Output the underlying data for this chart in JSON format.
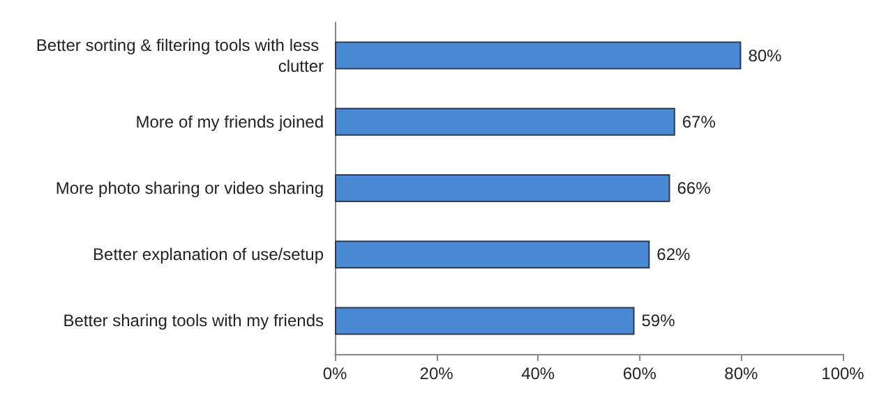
{
  "chart_data": {
    "type": "bar",
    "orientation": "horizontal",
    "categories": [
      "Better sorting & filtering tools with less clutter",
      "More of my friends joined",
      "More photo sharing or video sharing",
      "Better explanation of use/setup",
      "Better sharing tools with my friends"
    ],
    "values": [
      80,
      67,
      66,
      62,
      59
    ],
    "value_labels": [
      "80%",
      "67%",
      "66%",
      "62%",
      "59%"
    ],
    "color": "#4a8ad4",
    "xlim": [
      0,
      100
    ],
    "xticks": [
      {
        "value": 0,
        "label": "0%"
      },
      {
        "value": 20,
        "label": "20%"
      },
      {
        "value": 40,
        "label": "40%"
      },
      {
        "value": 60,
        "label": "60%"
      },
      {
        "value": 80,
        "label": "80%"
      },
      {
        "value": 100,
        "label": "100%"
      }
    ],
    "grid": false
  }
}
